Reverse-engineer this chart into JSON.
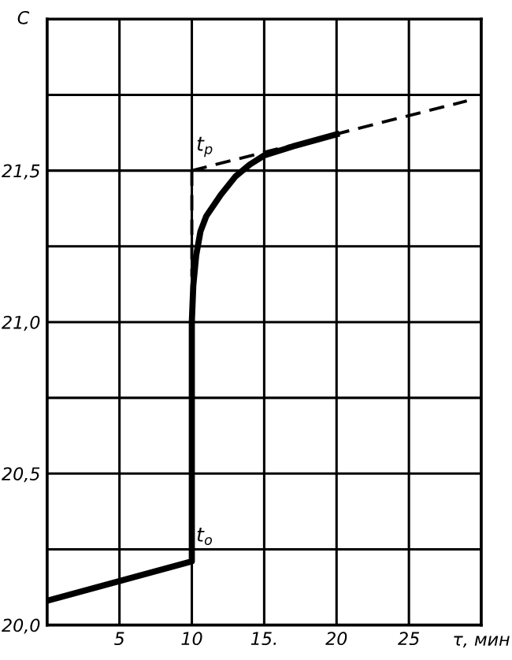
{
  "chart_data": {
    "type": "line",
    "xlabel": "τ, мин",
    "ylabel": "C",
    "series": [
      {
        "color": "#000000",
        "line_style": "solid",
        "x": [
          0,
          10,
          10,
          10.1,
          10.3,
          10.6,
          11,
          12,
          13,
          14,
          15,
          17,
          20
        ],
        "values": [
          20.08,
          20.21,
          21.0,
          21.12,
          21.22,
          21.3,
          21.35,
          21.42,
          21.48,
          21.52,
          21.55,
          21.58,
          21.62
        ]
      },
      {
        "color": "#000000",
        "line_style": "dashed",
        "x": [
          10,
          29
        ],
        "values": [
          21.5,
          21.73
        ]
      },
      {
        "color": "#000000",
        "line_style": "dashed",
        "x": [
          10,
          10
        ],
        "values": [
          21.5,
          21.15
        ]
      }
    ],
    "annotations": [
      {
        "text": "t$_{p}$",
        "x": 10,
        "y": 21.5
      },
      {
        "text": "t$_{o}$",
        "x": 10,
        "y": 20.21
      }
    ],
    "xlim": [
      0,
      30
    ],
    "xticks": [
      {
        "value": 0,
        "label": null
      },
      5,
      10,
      {
        "value": 15,
        "label": "15."
      },
      20,
      25,
      {
        "value": 30,
        "label": null
      }
    ],
    "ylim": [
      20.0,
      22.0
    ],
    "yticks": [
      {
        "value": 20.0,
        "label": "20,0"
      },
      {
        "value": 20.25,
        "label": null
      },
      {
        "value": 20.5,
        "label": "20,5"
      },
      {
        "value": 20.75,
        "label": null
      },
      {
        "value": 21.0,
        "label": "21,0"
      },
      {
        "value": 21.25,
        "label": null
      },
      {
        "value": 21.5,
        "label": "21,5"
      },
      {
        "value": 21.75,
        "label": null
      },
      {
        "value": 22.0,
        "label": null
      }
    ],
    "grid": true,
    "marker": "none"
  }
}
